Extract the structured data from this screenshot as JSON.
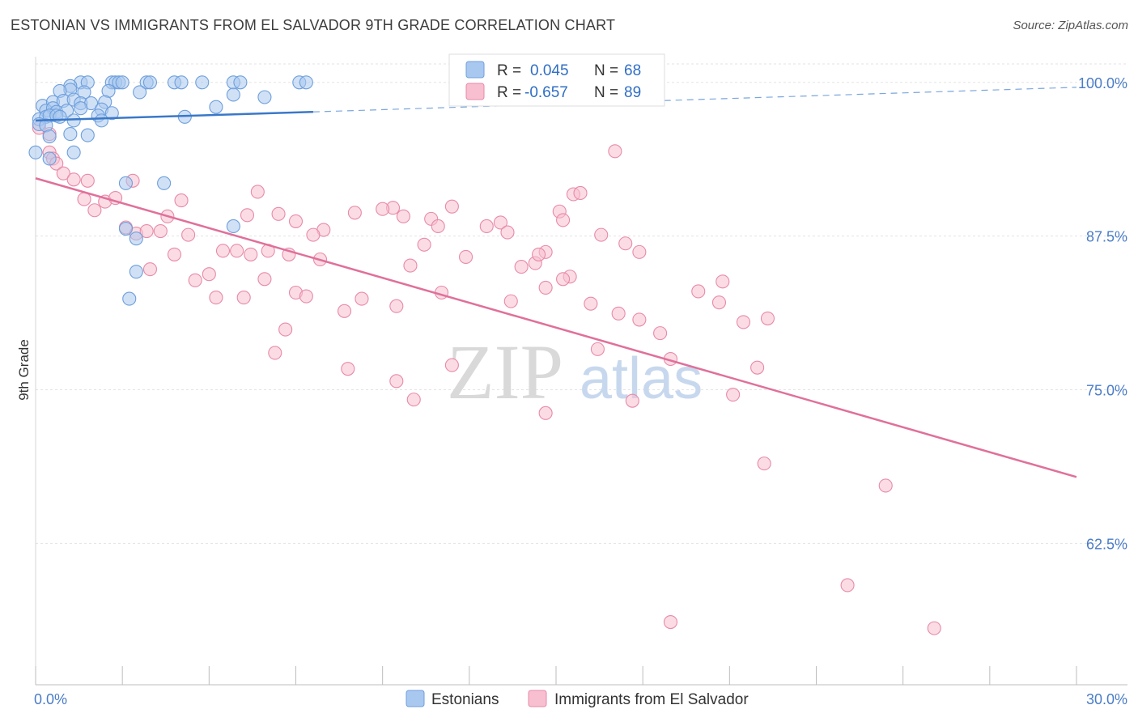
{
  "header": {
    "title": "ESTONIAN VS IMMIGRANTS FROM EL SALVADOR 9TH GRADE CORRELATION CHART",
    "source": "Source: ZipAtlas.com"
  },
  "watermark": {
    "zip": "ZIP",
    "atlas": "atlas"
  },
  "legend_box": {
    "rows": [
      {
        "r_label": "R =",
        "r_value": "0.045",
        "n_label": "N =",
        "n_value": "68",
        "color": "#a9c8ef",
        "stroke": "#6e9fdc"
      },
      {
        "r_label": "R =",
        "r_value": "-0.657",
        "n_label": "N =",
        "n_value": "89",
        "color": "#f7bfd0",
        "stroke": "#e88aa8"
      }
    ]
  },
  "bottom_legend": {
    "items": [
      {
        "label": "Estonians",
        "color": "#a9c8ef",
        "stroke": "#6e9fdc"
      },
      {
        "label": "Immigrants from El Salvador",
        "color": "#f7bfd0",
        "stroke": "#e88aa8"
      }
    ]
  },
  "chart_data": {
    "type": "scatter",
    "title": "ESTONIAN VS IMMIGRANTS FROM EL SALVADOR 9TH GRADE CORRELATION CHART",
    "xlabel": "",
    "ylabel": "9th Grade",
    "xlim": [
      0,
      30
    ],
    "ylim": [
      51,
      101.5
    ],
    "x_tick_labels": [
      "0.0%",
      "30.0%"
    ],
    "y_ticks": [
      62.5,
      75.0,
      87.5,
      100.0
    ],
    "y_tick_labels": [
      "62.5%",
      "75.0%",
      "87.5%",
      "100.0%"
    ],
    "grid": true,
    "legend_position": "bottom",
    "series": [
      {
        "name": "Estonians",
        "color": "#6e9fdc",
        "fill": "#a9c8ef",
        "trend": {
          "x": [
            0,
            8
          ],
          "y": [
            96.9,
            97.6
          ],
          "dashed_to": [
            30,
            99.6
          ]
        },
        "points": [
          [
            1.3,
            100
          ],
          [
            1.5,
            100
          ],
          [
            2.2,
            100
          ],
          [
            2.3,
            100
          ],
          [
            2.4,
            100
          ],
          [
            2.5,
            100
          ],
          [
            3.2,
            100
          ],
          [
            3.3,
            100
          ],
          [
            4.0,
            100
          ],
          [
            4.2,
            100
          ],
          [
            4.8,
            100
          ],
          [
            5.7,
            100
          ],
          [
            5.9,
            100
          ],
          [
            7.6,
            100
          ],
          [
            7.8,
            100
          ],
          [
            1.0,
            99.7
          ],
          [
            1.0,
            99.4
          ],
          [
            0.7,
            99.3
          ],
          [
            1.4,
            99.2
          ],
          [
            2.1,
            99.3
          ],
          [
            3.0,
            99.2
          ],
          [
            5.7,
            99.0
          ],
          [
            6.6,
            98.8
          ],
          [
            0.2,
            98.1
          ],
          [
            0.5,
            98.4
          ],
          [
            0.8,
            98.5
          ],
          [
            1.1,
            98.6
          ],
          [
            1.3,
            98.3
          ],
          [
            1.6,
            98.3
          ],
          [
            2.0,
            98.4
          ],
          [
            0.3,
            97.7
          ],
          [
            0.5,
            97.9
          ],
          [
            0.6,
            97.6
          ],
          [
            0.9,
            97.7
          ],
          [
            1.3,
            97.9
          ],
          [
            1.9,
            97.8
          ],
          [
            2.2,
            97.5
          ],
          [
            5.2,
            98.0
          ],
          [
            0.1,
            97.0
          ],
          [
            0.3,
            97.2
          ],
          [
            0.4,
            97.3
          ],
          [
            0.6,
            97.3
          ],
          [
            0.7,
            97.2
          ],
          [
            1.1,
            96.9
          ],
          [
            1.8,
            97.3
          ],
          [
            1.9,
            96.9
          ],
          [
            4.3,
            97.2
          ],
          [
            0.1,
            96.6
          ],
          [
            0.3,
            96.5
          ],
          [
            0.4,
            95.6
          ],
          [
            1.0,
            95.8
          ],
          [
            1.5,
            95.7
          ],
          [
            0.0,
            94.3
          ],
          [
            0.4,
            93.8
          ],
          [
            1.1,
            94.3
          ],
          [
            2.6,
            91.8
          ],
          [
            3.7,
            91.8
          ],
          [
            2.6,
            88.1
          ],
          [
            2.9,
            87.3
          ],
          [
            5.7,
            88.3
          ],
          [
            2.9,
            84.6
          ],
          [
            2.7,
            82.4
          ]
        ]
      },
      {
        "name": "Immigrants from El Salvador",
        "color": "#e88aa8",
        "fill": "#f7bfd0",
        "trend": {
          "x": [
            0,
            30
          ],
          "y": [
            92.2,
            67.9
          ]
        },
        "points": [
          [
            0.1,
            96.3
          ],
          [
            0.4,
            95.8
          ],
          [
            0.4,
            94.3
          ],
          [
            0.5,
            93.8
          ],
          [
            0.6,
            93.4
          ],
          [
            0.8,
            92.6
          ],
          [
            1.1,
            92.1
          ],
          [
            1.5,
            92.0
          ],
          [
            2.8,
            92.0
          ],
          [
            1.4,
            90.5
          ],
          [
            1.7,
            89.6
          ],
          [
            2.0,
            90.3
          ],
          [
            2.3,
            90.6
          ],
          [
            2.6,
            88.2
          ],
          [
            2.9,
            87.7
          ],
          [
            3.2,
            87.9
          ],
          [
            3.6,
            87.9
          ],
          [
            4.2,
            90.4
          ],
          [
            3.8,
            89.1
          ],
          [
            4.4,
            87.6
          ],
          [
            4.0,
            86.0
          ],
          [
            5.4,
            86.3
          ],
          [
            5.8,
            86.3
          ],
          [
            6.2,
            86.0
          ],
          [
            6.4,
            91.1
          ],
          [
            6.1,
            89.2
          ],
          [
            7.0,
            89.3
          ],
          [
            6.7,
            86.3
          ],
          [
            7.3,
            86.0
          ],
          [
            7.5,
            88.7
          ],
          [
            8.3,
            88.0
          ],
          [
            8.0,
            87.6
          ],
          [
            9.2,
            89.4
          ],
          [
            10.3,
            89.8
          ],
          [
            10.0,
            89.7
          ],
          [
            10.6,
            89.1
          ],
          [
            11.4,
            88.9
          ],
          [
            11.6,
            88.3
          ],
          [
            12.0,
            89.9
          ],
          [
            11.2,
            86.8
          ],
          [
            10.8,
            85.1
          ],
          [
            12.4,
            85.8
          ],
          [
            13.0,
            88.3
          ],
          [
            13.4,
            88.6
          ],
          [
            13.6,
            87.8
          ],
          [
            14.0,
            85.0
          ],
          [
            14.4,
            85.3
          ],
          [
            14.7,
            86.2
          ],
          [
            14.5,
            86.0
          ],
          [
            15.1,
            89.5
          ],
          [
            15.2,
            88.8
          ],
          [
            15.5,
            90.9
          ],
          [
            15.4,
            84.2
          ],
          [
            15.7,
            91.0
          ],
          [
            16.7,
            94.4
          ],
          [
            16.3,
            87.6
          ],
          [
            17.0,
            86.9
          ],
          [
            17.4,
            86.2
          ],
          [
            19.1,
            83.0
          ],
          [
            8.2,
            85.6
          ],
          [
            5.0,
            84.4
          ],
          [
            4.6,
            83.9
          ],
          [
            3.3,
            84.8
          ],
          [
            5.2,
            82.5
          ],
          [
            6.0,
            82.5
          ],
          [
            6.6,
            84.0
          ],
          [
            7.5,
            82.9
          ],
          [
            7.8,
            82.6
          ],
          [
            8.9,
            81.4
          ],
          [
            9.4,
            82.4
          ],
          [
            10.4,
            81.8
          ],
          [
            11.7,
            82.9
          ],
          [
            13.7,
            82.2
          ],
          [
            14.7,
            83.3
          ],
          [
            15.2,
            84.0
          ],
          [
            16.0,
            82.0
          ],
          [
            16.8,
            81.2
          ],
          [
            17.4,
            80.7
          ],
          [
            18.0,
            79.6
          ],
          [
            19.7,
            82.1
          ],
          [
            19.8,
            83.8
          ],
          [
            20.4,
            80.5
          ],
          [
            21.1,
            80.8
          ],
          [
            7.2,
            79.9
          ],
          [
            6.9,
            78.0
          ],
          [
            9.0,
            76.7
          ],
          [
            10.4,
            75.7
          ],
          [
            10.9,
            74.2
          ],
          [
            12.0,
            77.0
          ],
          [
            14.7,
            73.1
          ],
          [
            16.2,
            78.3
          ],
          [
            17.2,
            74.1
          ],
          [
            18.3,
            77.5
          ],
          [
            20.1,
            74.6
          ],
          [
            20.8,
            76.8
          ],
          [
            21.0,
            69.0
          ],
          [
            24.5,
            67.2
          ],
          [
            23.4,
            59.1
          ],
          [
            18.3,
            56.1
          ],
          [
            25.9,
            55.6
          ]
        ]
      }
    ]
  }
}
